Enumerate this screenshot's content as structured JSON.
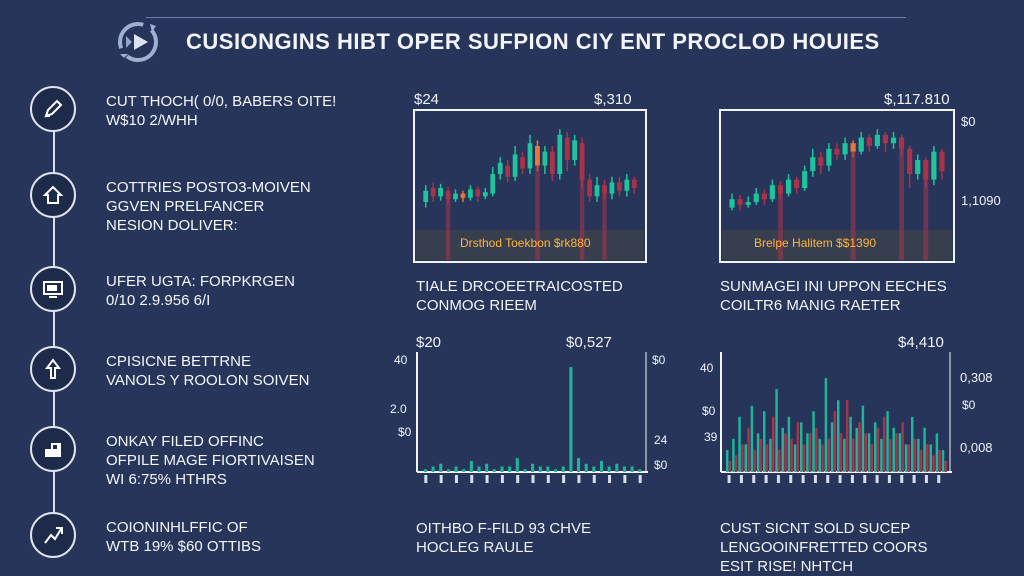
{
  "header": {
    "title": "CUSIONGINS HIBT OPER SUFPION CIY ENT PROCLOD HOUIES"
  },
  "sidebar": {
    "items": [
      {
        "icon": "pencil-icon",
        "lines": [
          "CUT THOCH( 0/0, BABERS OITE!",
          "W$10 2/WHH"
        ]
      },
      {
        "icon": "house-icon",
        "lines": [
          "COTTRIES POSTO3-MOIVEN",
          "GGVEN PRELFANCER",
          "NESION DOLIVER:"
        ]
      },
      {
        "icon": "monitor-icon",
        "lines": [
          "UFER UGTA: FORPKRGEN",
          "0/10 2.9.956 6/I"
        ]
      },
      {
        "icon": "arrow-up-icon",
        "lines": [
          "CPISICNE BETTRNE",
          "VANOLS Y ROOLON SOIVEN"
        ]
      },
      {
        "icon": "chart-block-icon",
        "lines": [
          "ONKAY FILED OFFINC",
          "OFPILE MAGE FIORTIVAISEN",
          "WI 6:75% HTHRS"
        ]
      },
      {
        "icon": "send-arrow-icon",
        "lines": [
          "COIONINHLFFIC OF",
          "WTB 19% $60 OTTIBS"
        ]
      }
    ]
  },
  "charts": [
    {
      "header_left": "$24",
      "header_right": "$,310",
      "inner_label": "Drsthod Toekbon $rk880",
      "caption": [
        "TIALE DRCOEETRAICOSTED",
        "CONMOG RIEEM"
      ]
    },
    {
      "header_right": "$,117.810",
      "right_labels": [
        "$0",
        "1,1090"
      ],
      "inner_label": "Brelpe Halitem $$1390",
      "caption": [
        "SUNMAGEI INI UPPON EECHES",
        "COILTR6 MANIG RAETER"
      ]
    },
    {
      "header_left": "$20",
      "header_right": "$0,527",
      "y_labels": [
        "40",
        "2.0",
        "$0"
      ],
      "right_labels": [
        "$0",
        "24",
        "$0"
      ],
      "caption": [
        "OITHBO F-FILD 93 CHVE",
        "HOCLEG RAULE"
      ]
    },
    {
      "header_right": "$4,410",
      "y_labels": [
        "40",
        "$0",
        "39"
      ],
      "right_labels": [
        "0,308",
        "$0",
        "0,008"
      ],
      "caption": [
        "CUST SICNT SOLD SUCEP",
        "LENGOOINFRETTED COORS",
        "ESIT RISE! NHTCH"
      ]
    }
  ],
  "colors": {
    "background": "#263559",
    "frame": "#f2f4f8",
    "bull": "#1fc39d",
    "bear": "#a7344b",
    "bear_orange": "#e8763a",
    "bar_teal": "#21b49a",
    "label_gold": "#ffb43a"
  },
  "chart_data": [
    {
      "type": "candlestick",
      "title": "TIALE DRCOEETRAICOSTED CONMOG RIEEM",
      "annotation": "Drsthod Toekbon $rk880",
      "candles": [
        {
          "o": 40,
          "c": 48,
          "h": 52,
          "l": 36,
          "dir": "up"
        },
        {
          "o": 50,
          "c": 44,
          "h": 54,
          "l": 40,
          "dir": "down"
        },
        {
          "o": 44,
          "c": 50,
          "h": 53,
          "l": 41,
          "dir": "up"
        },
        {
          "o": 48,
          "c": 42,
          "h": 51,
          "l": 39,
          "dir": "down"
        },
        {
          "o": 42,
          "c": 46,
          "h": 49,
          "l": 40,
          "dir": "up"
        },
        {
          "o": 46,
          "c": 43,
          "h": 48,
          "l": 40,
          "dir": "down"
        },
        {
          "o": 43,
          "c": 49,
          "h": 52,
          "l": 41,
          "dir": "up"
        },
        {
          "o": 49,
          "c": 44,
          "h": 51,
          "l": 40,
          "dir": "down"
        },
        {
          "o": 44,
          "c": 47,
          "h": 50,
          "l": 42,
          "dir": "up"
        },
        {
          "o": 46,
          "c": 60,
          "h": 65,
          "l": 44,
          "dir": "up"
        },
        {
          "o": 60,
          "c": 68,
          "h": 72,
          "l": 56,
          "dir": "up"
        },
        {
          "o": 66,
          "c": 58,
          "h": 70,
          "l": 54,
          "dir": "down"
        },
        {
          "o": 58,
          "c": 74,
          "h": 80,
          "l": 55,
          "dir": "up"
        },
        {
          "o": 72,
          "c": 64,
          "h": 76,
          "l": 60,
          "dir": "down"
        },
        {
          "o": 64,
          "c": 82,
          "h": 88,
          "l": 60,
          "dir": "up"
        },
        {
          "o": 80,
          "c": 66,
          "h": 84,
          "l": 62,
          "dir": "down"
        },
        {
          "o": 66,
          "c": 76,
          "h": 80,
          "l": 60,
          "dir": "up"
        },
        {
          "o": 76,
          "c": 60,
          "h": 80,
          "l": 55,
          "dir": "down"
        },
        {
          "o": 60,
          "c": 88,
          "h": 92,
          "l": 56,
          "dir": "up"
        },
        {
          "o": 86,
          "c": 70,
          "h": 90,
          "l": 62,
          "dir": "down"
        },
        {
          "o": 70,
          "c": 84,
          "h": 88,
          "l": 66,
          "dir": "up"
        },
        {
          "o": 82,
          "c": 56,
          "h": 86,
          "l": 50,
          "dir": "down"
        },
        {
          "o": 56,
          "c": 44,
          "h": 60,
          "l": 40,
          "dir": "down"
        },
        {
          "o": 44,
          "c": 52,
          "h": 58,
          "l": 40,
          "dir": "up"
        },
        {
          "o": 52,
          "c": 46,
          "h": 56,
          "l": 42,
          "dir": "down"
        },
        {
          "o": 46,
          "c": 54,
          "h": 58,
          "l": 42,
          "dir": "up"
        },
        {
          "o": 54,
          "c": 48,
          "h": 58,
          "l": 44,
          "dir": "down"
        },
        {
          "o": 48,
          "c": 56,
          "h": 60,
          "l": 44,
          "dir": "up"
        },
        {
          "o": 56,
          "c": 50,
          "h": 58,
          "l": 46,
          "dir": "down"
        }
      ]
    },
    {
      "type": "candlestick",
      "title": "SUNMAGEI INI UPPON EECHES COILTR6 MANIG RAETER",
      "annotation": "Brelpe Halitem $$1390",
      "candles": [
        {
          "o": 36,
          "c": 42,
          "h": 46,
          "l": 34,
          "dir": "up"
        },
        {
          "o": 42,
          "c": 38,
          "h": 45,
          "l": 34,
          "dir": "down"
        },
        {
          "o": 38,
          "c": 40,
          "h": 44,
          "l": 36,
          "dir": "up"
        },
        {
          "o": 40,
          "c": 46,
          "h": 50,
          "l": 38,
          "dir": "up"
        },
        {
          "o": 46,
          "c": 42,
          "h": 49,
          "l": 38,
          "dir": "down"
        },
        {
          "o": 42,
          "c": 52,
          "h": 56,
          "l": 40,
          "dir": "up"
        },
        {
          "o": 52,
          "c": 46,
          "h": 55,
          "l": 42,
          "dir": "down"
        },
        {
          "o": 46,
          "c": 56,
          "h": 60,
          "l": 44,
          "dir": "up"
        },
        {
          "o": 56,
          "c": 50,
          "h": 58,
          "l": 46,
          "dir": "down"
        },
        {
          "o": 50,
          "c": 62,
          "h": 66,
          "l": 48,
          "dir": "up"
        },
        {
          "o": 62,
          "c": 72,
          "h": 78,
          "l": 58,
          "dir": "up"
        },
        {
          "o": 72,
          "c": 66,
          "h": 76,
          "l": 60,
          "dir": "down"
        },
        {
          "o": 66,
          "c": 78,
          "h": 82,
          "l": 62,
          "dir": "up"
        },
        {
          "o": 78,
          "c": 74,
          "h": 82,
          "l": 70,
          "dir": "down"
        },
        {
          "o": 74,
          "c": 82,
          "h": 86,
          "l": 70,
          "dir": "up"
        },
        {
          "o": 82,
          "c": 76,
          "h": 84,
          "l": 72,
          "dir": "down"
        },
        {
          "o": 76,
          "c": 86,
          "h": 90,
          "l": 74,
          "dir": "up"
        },
        {
          "o": 86,
          "c": 80,
          "h": 88,
          "l": 76,
          "dir": "down"
        },
        {
          "o": 80,
          "c": 88,
          "h": 92,
          "l": 78,
          "dir": "up"
        },
        {
          "o": 88,
          "c": 82,
          "h": 90,
          "l": 76,
          "dir": "down"
        },
        {
          "o": 82,
          "c": 86,
          "h": 90,
          "l": 78,
          "dir": "up"
        },
        {
          "o": 86,
          "c": 78,
          "h": 88,
          "l": 72,
          "dir": "down"
        },
        {
          "o": 78,
          "c": 60,
          "h": 80,
          "l": 50,
          "dir": "down"
        },
        {
          "o": 60,
          "c": 70,
          "h": 74,
          "l": 56,
          "dir": "up"
        },
        {
          "o": 70,
          "c": 56,
          "h": 72,
          "l": 50,
          "dir": "down"
        },
        {
          "o": 56,
          "c": 76,
          "h": 80,
          "l": 52,
          "dir": "up"
        },
        {
          "o": 76,
          "c": 62,
          "h": 78,
          "l": 56,
          "dir": "down"
        }
      ]
    },
    {
      "type": "bar",
      "title": "OITHBO F-FILD 93 CHVE HOCLEG RAULE",
      "ylim": [
        0,
        42
      ],
      "values": [
        1,
        2,
        3,
        1,
        2,
        1,
        4,
        2,
        3,
        1,
        2,
        2,
        5,
        1,
        3,
        2,
        2,
        1,
        2,
        38,
        5,
        3,
        2,
        4,
        2,
        3,
        2,
        2,
        1
      ]
    },
    {
      "type": "bar",
      "title": "CUST SICNT SOLD SUCEP LENGOOINFRETTED COORS ESIT RISE! NHTCH",
      "ylim": [
        0,
        42
      ],
      "series": [
        {
          "name": "",
          "values": [
            8,
            12,
            20,
            10,
            24,
            14,
            22,
            12,
            30,
            16,
            20,
            10,
            18,
            14,
            22,
            12,
            34,
            18,
            26,
            12,
            20,
            16,
            24,
            14,
            18,
            12,
            22,
            16,
            14,
            10,
            20,
            12,
            16,
            10,
            14,
            8
          ]
        },
        {
          "name": "",
          "values": [
            4,
            6,
            10,
            16,
            8,
            12,
            10,
            20,
            8,
            14,
            12,
            18,
            10,
            14,
            16,
            10,
            12,
            22,
            14,
            26,
            12,
            18,
            14,
            10,
            16,
            20,
            12,
            14,
            18,
            10,
            12,
            8,
            10,
            6,
            8,
            4
          ]
        }
      ]
    }
  ]
}
